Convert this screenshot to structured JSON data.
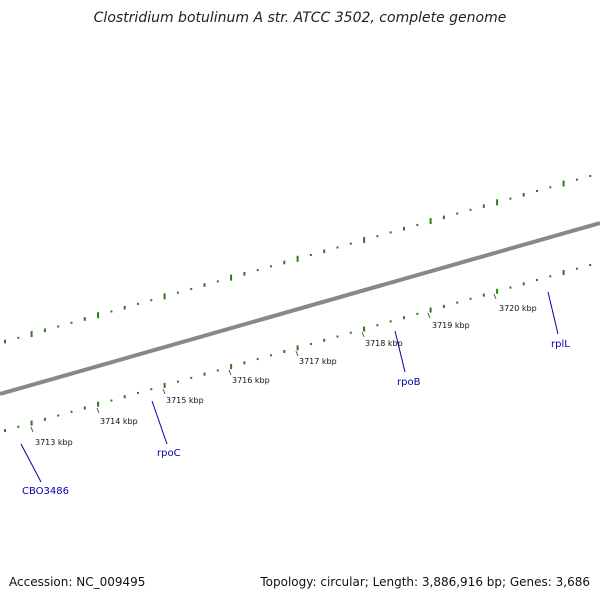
{
  "title": "Clostridium botulinum A str. ATCC 3502, complete genome",
  "footer": {
    "accession": "Accession: NC_009495",
    "topology": "Topology: circular; Length: 3,886,916 bp; Genes: 3,686"
  },
  "axis": {
    "unit": "kbp",
    "tick_labels": [
      "3713 kbp",
      "3714 kbp",
      "3715 kbp",
      "3716 kbp",
      "3717 kbp",
      "3718 kbp",
      "3719 kbp",
      "3720 kbp"
    ]
  },
  "colors": {
    "forward_cds": "#0000ee",
    "reverse_cds": "#ff9900",
    "rna_feature": "#e07070",
    "backbone": "#888888",
    "gc_ticks": "#2a7a1a",
    "gene_label": "#0000aa"
  },
  "gene_labels": [
    "CBO3486",
    "rpoC",
    "rpoB",
    "rplL"
  ]
}
